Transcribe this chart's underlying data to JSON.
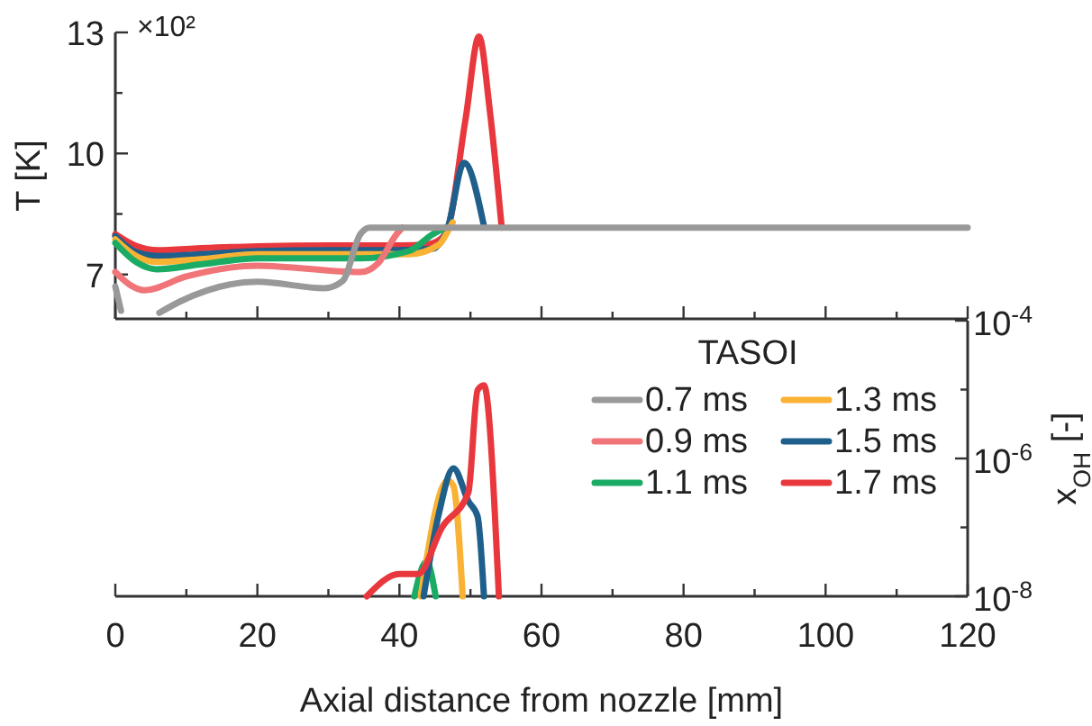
{
  "chart_data": [
    {
      "type": "line",
      "ylabel": "T [K]",
      "annotations": [
        "×10²"
      ],
      "xlim": [
        0,
        120
      ],
      "xticks": [
        {
          "value": 0,
          "label": null
        },
        {
          "value": 10,
          "label": null
        },
        {
          "value": 20,
          "label": null
        },
        {
          "value": 30,
          "label": null
        },
        {
          "value": 40,
          "label": null
        },
        {
          "value": 50,
          "label": null
        },
        {
          "value": 60,
          "label": null
        },
        {
          "value": 70,
          "label": null
        },
        {
          "value": 80,
          "label": null
        },
        {
          "value": 90,
          "label": null
        },
        {
          "value": 100,
          "label": null
        },
        {
          "value": 110,
          "label": null
        },
        {
          "value": 120,
          "label": null
        }
      ],
      "ylim": [
        5.9,
        13
      ],
      "yticks": [
        7,
        {
          "value": 8.5,
          "label": null
        },
        10,
        {
          "value": 11.5,
          "label": null
        },
        13
      ],
      "tick_labels": "y",
      "grid": false,
      "legend": false,
      "line_style": "solid",
      "series": [
        {
          "color": "#e8383d",
          "x": [
            0,
            3,
            6,
            12,
            20,
            30,
            40,
            44,
            46.5,
            49.3,
            51.2,
            52.7,
            54.4
          ],
          "values": [
            8.0,
            7.7,
            7.6,
            7.65,
            7.7,
            7.72,
            7.72,
            7.75,
            8.0,
            10.84,
            12.9,
            11.1,
            8.16
          ]
        },
        {
          "color": "#1f5f8b",
          "x": [
            0,
            3,
            6,
            12,
            20,
            30,
            40,
            44.7,
            46.8,
            49.1,
            51.9
          ],
          "values": [
            7.95,
            7.55,
            7.46,
            7.5,
            7.58,
            7.6,
            7.6,
            7.64,
            8.16,
            9.77,
            8.2
          ]
        },
        {
          "color": "#f9b233",
          "x": [
            0,
            3,
            6,
            12,
            20,
            30,
            41.3,
            45.5,
            47.2,
            47.5
          ],
          "values": [
            7.87,
            7.45,
            7.31,
            7.38,
            7.5,
            7.5,
            7.5,
            7.73,
            8.2,
            8.29
          ]
        },
        {
          "color": "#1aab64",
          "x": [
            0,
            3,
            5.8,
            12,
            20,
            34.5,
            41.3,
            44.7,
            46.4
          ],
          "values": [
            7.78,
            7.3,
            7.13,
            7.25,
            7.4,
            7.4,
            7.58,
            8.0,
            8.16
          ]
        },
        {
          "color": "#f07478",
          "x": [
            0,
            2,
            4.1,
            10,
            20,
            34.5,
            37,
            39.6,
            40.4
          ],
          "values": [
            7.06,
            6.75,
            6.61,
            6.95,
            7.22,
            7.06,
            7.28,
            8.0,
            8.16
          ]
        },
        {
          "color": "#999999",
          "x": [
            0,
            0.8,
            2.5,
            6.2,
            9.1,
            20,
            29.4,
            32,
            34.5,
            35.8,
            120
          ],
          "values": [
            6.7,
            6.1,
            null,
            6.05,
            6.33,
            6.82,
            6.66,
            6.84,
            8.0,
            8.16,
            8.16
          ]
        }
      ]
    },
    {
      "type": "line",
      "xlabel": "Axial distance from nozzle [mm]",
      "y2label": "x$_{OH}$ [-]",
      "legend_title": "TASOI",
      "xlim": [
        0,
        120
      ],
      "xticks": [
        0,
        {
          "value": 10,
          "label": null
        },
        20,
        {
          "value": 30,
          "label": null
        },
        40,
        {
          "value": 50,
          "label": null
        },
        60,
        {
          "value": 70,
          "label": null
        },
        80,
        {
          "value": 90,
          "label": null
        },
        100,
        {
          "value": 110,
          "label": null
        },
        120
      ],
      "y2lim": [
        1e-08,
        0.0001
      ],
      "y2ticks": [
        {
          "value": 1e-08,
          "label": "10$^{-8}$"
        },
        {
          "value": 1e-07,
          "label": null
        },
        {
          "value": 1e-06,
          "label": "10$^{-6}$"
        },
        {
          "value": 1e-05,
          "label": null
        },
        {
          "value": 0.0001,
          "label": "10$^{-4}$"
        }
      ],
      "log": "y2",
      "tick_labels": "x",
      "grid": false,
      "legend": "top right",
      "line_style": "solid",
      "series": [
        {
          "name": "0.7 ms",
          "color": "#999999",
          "axis": "y2"
        },
        {
          "name": "0.9 ms",
          "color": "#f07478",
          "axis": "y2"
        },
        {
          "name": "1.1 ms",
          "color": "#1aab64",
          "axis": "y2",
          "x": [
            42.1,
            43.8,
            45.1
          ],
          "values": [
            1e-08,
            3.2e-08,
            1e-08
          ]
        },
        {
          "name": "1.3 ms",
          "color": "#f9b233",
          "axis": "y2",
          "x": [
            43,
            46.8,
            47.6,
            48.9
          ],
          "values": [
            1e-08,
            4.8e-07,
            4e-07,
            1e-08
          ]
        },
        {
          "name": "1.5 ms",
          "color": "#1f5f8b",
          "axis": "y2",
          "x": [
            43.4,
            45.5,
            47.6,
            49.7,
            51,
            51.9
          ],
          "values": [
            1e-08,
            1.5e-07,
            7.2e-07,
            2.4e-07,
            1.45e-07,
            1e-08
          ]
        },
        {
          "name": "1.7 ms",
          "color": "#e8383d",
          "axis": "y2",
          "x": [
            35.4,
            40,
            42.6,
            46,
            49.7,
            51,
            51.9,
            54
          ],
          "values": [
            1e-08,
            2.1e-08,
            2.1e-08,
            1e-07,
            3.2e-07,
            9.8e-06,
            1.15e-05,
            1e-08
          ]
        }
      ]
    }
  ]
}
